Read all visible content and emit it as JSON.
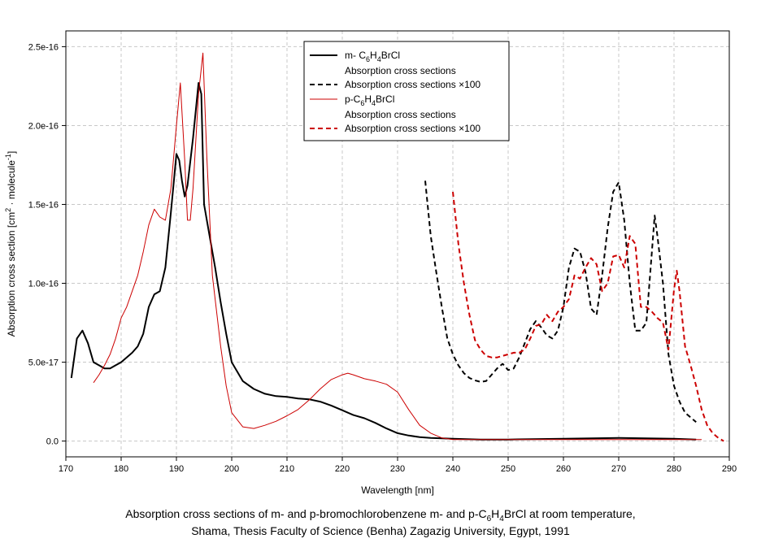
{
  "chart_data": {
    "type": "line",
    "xlabel": "Wavelength [nm]",
    "ylabel": "Absorption cross section [cm2 · molecule-1]",
    "xlim": [
      170,
      290
    ],
    "ylim": [
      -1e-17,
      2.6e-16
    ],
    "x_ticks": [
      170,
      180,
      190,
      200,
      210,
      220,
      230,
      240,
      250,
      260,
      270,
      280,
      290
    ],
    "y_ticks": [
      0,
      5e-17,
      1e-16,
      1.5e-16,
      2e-16,
      2.5e-16
    ],
    "y_tick_labels": [
      "0.0",
      "5.0e-17",
      "1.0e-16",
      "1.5e-16",
      "2.0e-16",
      "2.5e-16"
    ],
    "grid": true,
    "legend_position": "top-center",
    "legend": {
      "m_title_prefix": "m- C",
      "m_title_6": "6",
      "m_title_h": "H",
      "m_title_4": "4",
      "m_title_suffix": "BrCl",
      "m_sub1": "Absorption cross sections",
      "m_sub2": "Absorption cross sections ×100",
      "p_title_prefix": "p-C",
      "p_title_6": "6",
      "p_title_h": "H",
      "p_title_4": "4",
      "p_title_suffix": "BrCl",
      "p_sub1": "Absorption cross sections",
      "p_sub2": "Absorption cross sections ×100"
    },
    "series": [
      {
        "name": "m-C6H4BrCl absorption cross sections",
        "color": "#000000",
        "width": 2,
        "dash": "none",
        "x": [
          171,
          172,
          173,
          174,
          175,
          176,
          177,
          178,
          179,
          180,
          181,
          182,
          183,
          184,
          185,
          186,
          187,
          188,
          189,
          190,
          190.5,
          191,
          191.5,
          192,
          193,
          194,
          194.5,
          195,
          196,
          197,
          198,
          199,
          200,
          202,
          204,
          206,
          208,
          210,
          212,
          214,
          216,
          218,
          220,
          222,
          224,
          226,
          228,
          230,
          232,
          234,
          236,
          240,
          245,
          250,
          260,
          270,
          280,
          284
        ],
        "y": [
          4e-17,
          6.5e-17,
          7e-17,
          6.2e-17,
          5e-17,
          4.8e-17,
          4.6e-17,
          4.6e-17,
          4.8e-17,
          5e-17,
          5.3e-17,
          5.6e-17,
          6e-17,
          6.8e-17,
          8.5e-17,
          9.3e-17,
          9.5e-17,
          1.1e-16,
          1.45e-16,
          1.82e-16,
          1.78e-16,
          1.65e-16,
          1.55e-16,
          1.62e-16,
          1.92e-16,
          2.27e-16,
          2.2e-16,
          1.5e-16,
          1.3e-16,
          1.1e-16,
          8.8e-17,
          6.8e-17,
          5e-17,
          3.8e-17,
          3.3e-17,
          3e-17,
          2.85e-17,
          2.8e-17,
          2.7e-17,
          2.65e-17,
          2.5e-17,
          2.25e-17,
          1.95e-17,
          1.65e-17,
          1.45e-17,
          1.15e-17,
          8e-18,
          5e-18,
          3.5e-18,
          2.5e-18,
          2e-18,
          1.5e-18,
          1e-18,
          1e-18,
          1.5e-18,
          2e-18,
          1.5e-18,
          1e-18
        ]
      },
      {
        "name": "m-C6H4BrCl absorption cross sections x100",
        "color": "#000000",
        "width": 2,
        "dash": "6,4",
        "x": [
          235,
          236,
          237,
          238,
          239,
          240,
          241,
          242,
          243,
          244,
          245,
          246,
          247,
          248,
          249,
          250,
          251,
          252,
          253,
          254,
          255,
          256,
          257,
          258,
          259,
          260,
          261,
          262,
          263,
          264,
          265,
          266,
          267,
          268,
          269,
          270,
          271,
          272,
          273,
          274,
          275,
          276,
          276.5,
          277,
          278,
          279,
          280,
          281,
          282,
          283,
          284
        ],
        "y": [
          1.65e-16,
          1.3e-16,
          1.07e-16,
          8.5e-17,
          6.5e-17,
          5.5e-17,
          4.8e-17,
          4.3e-17,
          4e-17,
          3.85e-17,
          3.75e-17,
          3.8e-17,
          4.2e-17,
          4.6e-17,
          4.9e-17,
          4.5e-17,
          4.6e-17,
          5.3e-17,
          6.2e-17,
          7.1e-17,
          7.6e-17,
          7.2e-17,
          6.7e-17,
          6.5e-17,
          7e-17,
          8.5e-17,
          1.1e-16,
          1.22e-16,
          1.2e-16,
          1.07e-16,
          8.4e-17,
          8e-17,
          1.05e-16,
          1.35e-16,
          1.58e-16,
          1.64e-16,
          1.4e-16,
          1e-16,
          7e-17,
          7e-17,
          7.5e-17,
          1.2e-16,
          1.43e-16,
          1.3e-16,
          1e-16,
          5.5e-17,
          3.5e-17,
          2.5e-17,
          1.8e-17,
          1.5e-17,
          1.2e-17
        ]
      },
      {
        "name": "p-C6H4BrCl absorption cross sections",
        "color": "#cc0000",
        "width": 1,
        "dash": "none",
        "x": [
          175,
          176,
          177,
          178,
          179,
          180,
          181,
          182,
          183,
          184,
          185,
          186,
          187,
          188,
          189,
          190,
          190.7,
          191.5,
          192,
          192.5,
          193,
          194,
          194.8,
          195.5,
          196.5,
          198,
          199,
          200,
          202,
          204,
          206,
          208,
          210,
          212,
          214,
          216,
          218,
          220,
          221,
          222,
          224,
          226,
          228,
          230,
          232,
          234,
          236,
          238,
          240,
          250,
          260,
          270,
          280,
          285
        ],
        "y": [
          3.7e-17,
          4.2e-17,
          4.8e-17,
          5.5e-17,
          6.5e-17,
          7.8e-17,
          8.5e-17,
          9.5e-17,
          1.05e-16,
          1.2e-16,
          1.37e-16,
          1.47e-16,
          1.42e-16,
          1.4e-16,
          1.6e-16,
          2e-16,
          2.27e-16,
          1.78e-16,
          1.4e-16,
          1.4e-16,
          1.6e-16,
          2.2e-16,
          2.46e-16,
          1.8e-16,
          1.05e-16,
          6e-17,
          3.5e-17,
          1.8e-17,
          9e-18,
          8e-18,
          1e-17,
          1.25e-17,
          1.6e-17,
          2e-17,
          2.6e-17,
          3.3e-17,
          3.9e-17,
          4.2e-17,
          4.3e-17,
          4.2e-17,
          3.95e-17,
          3.8e-17,
          3.6e-17,
          3.1e-17,
          2e-17,
          1e-17,
          5e-18,
          2e-18,
          1e-18,
          1e-18,
          1e-18,
          1e-18,
          1e-18,
          1e-18
        ]
      },
      {
        "name": "p-C6H4BrCl absorption cross sections x100",
        "color": "#cc0000",
        "width": 2,
        "dash": "6,4",
        "x": [
          240,
          241,
          242,
          243,
          244,
          245,
          246,
          247,
          248,
          249,
          250,
          251,
          252,
          253,
          254,
          255,
          256,
          257,
          258,
          259,
          260,
          261,
          262,
          263,
          264,
          265,
          266,
          267,
          268,
          269,
          270,
          271,
          272,
          273,
          274,
          275,
          276,
          277,
          278,
          279,
          280,
          280.5,
          281,
          282,
          283,
          284,
          285,
          286,
          287,
          288,
          289
        ],
        "y": [
          1.58e-16,
          1.25e-16,
          1e-16,
          8e-17,
          6.4e-17,
          5.8e-17,
          5.4e-17,
          5.3e-17,
          5.3e-17,
          5.4e-17,
          5.5e-17,
          5.6e-17,
          5.6e-17,
          5.8e-17,
          6.5e-17,
          7.3e-17,
          7.4e-17,
          8e-17,
          7.6e-17,
          8.2e-17,
          8.5e-17,
          9e-17,
          1.05e-16,
          1.03e-16,
          1.1e-16,
          1.16e-16,
          1.12e-16,
          9.5e-17,
          1e-16,
          1.17e-16,
          1.18e-16,
          1.1e-16,
          1.3e-16,
          1.25e-16,
          8.5e-17,
          8.5e-17,
          8.2e-17,
          7.8e-17,
          7.5e-17,
          5.8e-17,
          9.6e-17,
          1.08e-16,
          9.5e-17,
          6e-17,
          4.8e-17,
          3.5e-17,
          2e-17,
          1e-17,
          5e-18,
          2e-18,
          0.0
        ]
      }
    ]
  },
  "caption": {
    "line1_a": "Absorption cross sections of m- and p-bromochlorobenzene m- and p-C",
    "line1_6": "6",
    "line1_h": "H",
    "line1_4": "4",
    "line1_b": "BrCl at room temperature,",
    "line2": "Shama, Thesis Faculty of Science (Benha) Zagazig University, Egypt, 1991"
  }
}
